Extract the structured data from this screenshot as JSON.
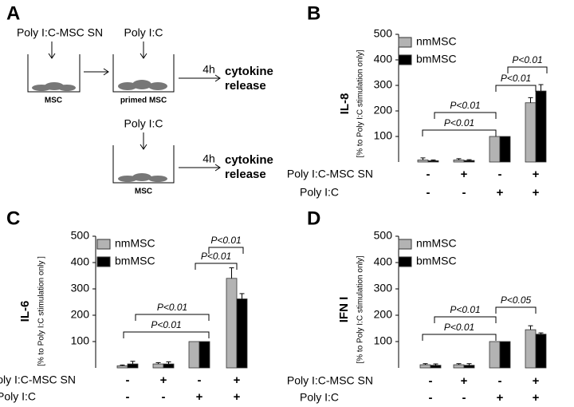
{
  "diagram": {
    "label": "A",
    "top": {
      "treatment": "Poly I:C-MSC SN",
      "cells": "MSC"
    },
    "primed": {
      "treatment": "Poly I:C",
      "cells": "primed MSC",
      "time": "4h",
      "result": [
        "cytokine",
        "release"
      ]
    },
    "bottom": {
      "treatment": "Poly I:C",
      "cells": "MSC",
      "time": "4h",
      "result": [
        "cytokine",
        "release"
      ]
    }
  },
  "chart_data": [
    {
      "type": "bar",
      "label": "B",
      "ylabel": "IL-8",
      "ylabel_sub": "[% to Poly I:C stimulation only]",
      "ylim": [
        0,
        500
      ],
      "yticks": [
        100,
        200,
        300,
        400,
        500
      ],
      "conditions": [
        {
          "label": "Poly I:C-MSC SN",
          "signs": [
            "-",
            "+",
            "-",
            "+"
          ]
        },
        {
          "label": "Poly I:C",
          "signs": [
            "-",
            "-",
            "+",
            "+"
          ]
        }
      ],
      "series": [
        {
          "name": "nmMSC",
          "color": "#b3b3b3",
          "values": [
            8,
            8,
            100,
            232
          ],
          "errors": [
            8,
            5,
            0,
            20
          ]
        },
        {
          "name": "bmMSC",
          "color": "#000000",
          "values": [
            5,
            6,
            100,
            278
          ],
          "errors": [
            3,
            3,
            0,
            25
          ]
        }
      ],
      "annotations": [
        "P<0.01",
        "P<0.01",
        "P<0.01",
        "P<0.01"
      ]
    },
    {
      "type": "bar",
      "label": "C",
      "ylabel": "IL-6",
      "ylabel_sub": "[% to Poly I:C stimulation only ]",
      "ylim": [
        0,
        500
      ],
      "yticks": [
        100,
        200,
        300,
        400,
        500
      ],
      "conditions": [
        {
          "label": "Poly I:C-MSC SN",
          "signs": [
            "-",
            "+",
            "-",
            "+"
          ]
        },
        {
          "label": "Poly I:C",
          "signs": [
            "-",
            "-",
            "+",
            "+"
          ]
        }
      ],
      "series": [
        {
          "name": "nmMSC",
          "color": "#b3b3b3",
          "values": [
            8,
            15,
            100,
            340
          ],
          "errors": [
            3,
            5,
            0,
            40
          ]
        },
        {
          "name": "bmMSC",
          "color": "#000000",
          "values": [
            15,
            15,
            100,
            262
          ],
          "errors": [
            10,
            8,
            0,
            20
          ]
        }
      ],
      "annotations": [
        "P<0.01",
        "P<0.01",
        "P<0.01",
        "P<0.01"
      ]
    },
    {
      "type": "bar",
      "label": "D",
      "ylabel": "IFN I",
      "ylabel_sub": "[% to Poly I:C stimulation only]",
      "ylim": [
        0,
        500
      ],
      "yticks": [
        100,
        200,
        300,
        400,
        500
      ],
      "conditions": [
        {
          "label": "Poly I:C-MSC SN",
          "signs": [
            "-",
            "+",
            "-",
            "+"
          ]
        },
        {
          "label": "Poly I:C",
          "signs": [
            "-",
            "-",
            "+",
            "+"
          ]
        }
      ],
      "series": [
        {
          "name": "nmMSC",
          "color": "#b3b3b3",
          "values": [
            12,
            12,
            100,
            145
          ],
          "errors": [
            4,
            4,
            0,
            15
          ]
        },
        {
          "name": "bmMSC",
          "color": "#000000",
          "values": [
            10,
            10,
            100,
            128
          ],
          "errors": [
            5,
            6,
            0,
            5
          ]
        }
      ],
      "annotations": [
        "P<0.01",
        "P<0.01",
        "P<0.05"
      ]
    }
  ]
}
